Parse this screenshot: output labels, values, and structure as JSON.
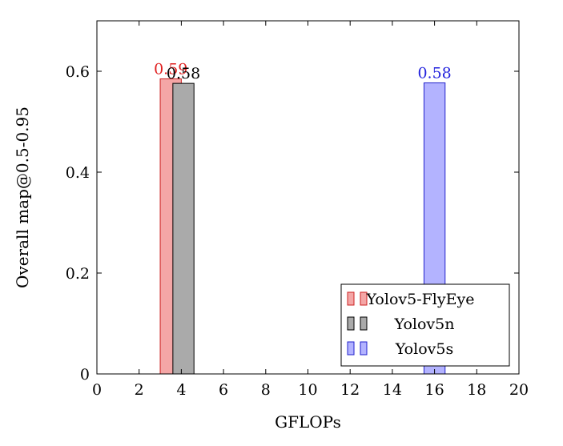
{
  "chart_data": {
    "type": "bar",
    "xlabel": "GFLOPs",
    "ylabel": "Overall map@0.5-0.95",
    "xlim": [
      0,
      20
    ],
    "ylim": [
      0,
      0.7
    ],
    "x_ticks": [
      0,
      2,
      4,
      6,
      8,
      10,
      12,
      14,
      16,
      18,
      20
    ],
    "y_ticks": [
      0,
      0.2,
      0.4,
      0.6
    ],
    "x_tick_labels": [
      "0",
      "2",
      "4",
      "6",
      "8",
      "10",
      "12",
      "14",
      "16",
      "18",
      "20"
    ],
    "y_tick_labels": [
      "0",
      "0.2",
      "0.4",
      "0.6"
    ],
    "grid": false,
    "legend_position": "bottom-right",
    "bar_width": 1.0,
    "series": [
      {
        "name": "Yolov5-FlyEye",
        "x": [
          3.5
        ],
        "values": [
          0.585
        ],
        "labels": [
          "0.59"
        ],
        "fill": "#f4a6a6",
        "stroke": "#cc2222",
        "label_color": "#e02020"
      },
      {
        "name": "Yolov5n",
        "x": [
          4.1
        ],
        "values": [
          0.576
        ],
        "labels": [
          "0.58"
        ],
        "fill": "#aaaaaa",
        "stroke": "#000000",
        "label_color": "#000000"
      },
      {
        "name": "Yolov5s",
        "x": [
          16.0
        ],
        "values": [
          0.577
        ],
        "labels": [
          "0.58"
        ],
        "fill": "#b3b3ff",
        "stroke": "#2222cc",
        "label_color": "#2222dd"
      }
    ]
  }
}
